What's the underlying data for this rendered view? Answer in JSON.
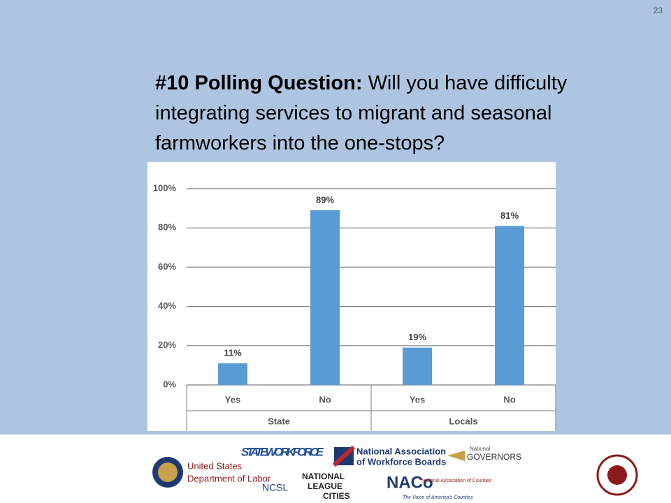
{
  "page_number": "23",
  "title": {
    "bold": "#10 Polling Question:",
    "text": "Will you have difficulty integrating services to migrant and seasonal farmworkers into the one-stops?"
  },
  "chart_data": {
    "type": "bar",
    "categories": [
      "Yes",
      "No",
      "Yes",
      "No"
    ],
    "group_labels": [
      "State",
      "Locals"
    ],
    "values": [
      11,
      89,
      19,
      81
    ],
    "value_labels": [
      "11%",
      "89%",
      "19%",
      "81%"
    ],
    "color": "#5b9bd5",
    "ylim": [
      0,
      100
    ],
    "yticks": [
      {
        "value": 0,
        "label": "0%"
      },
      {
        "value": 20,
        "label": "20%"
      },
      {
        "value": 40,
        "label": "40%"
      },
      {
        "value": 60,
        "label": "60%"
      },
      {
        "value": 80,
        "label": "80%"
      },
      {
        "value": 100,
        "label": "100%"
      }
    ],
    "grid": true
  },
  "footer": {
    "dol": [
      "United States",
      "Department of Labor"
    ],
    "statewide": "STATEWORKFORCE",
    "nawb": [
      "National Association",
      "of Workforce Boards"
    ],
    "nga": [
      "GOVERNORS",
      "National"
    ],
    "ncsl": "NCSL",
    "nlc": [
      "NATIONAL",
      "LEAGUE",
      "CITIES"
    ],
    "naco": [
      "NACo",
      "National Association of Counties",
      "The Voice of America's Counties"
    ]
  }
}
